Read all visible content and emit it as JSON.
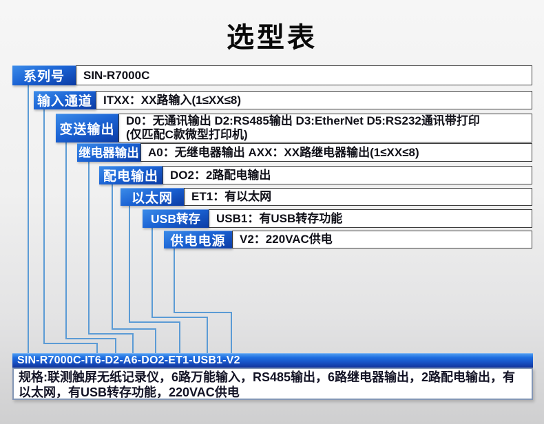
{
  "title": "选型表",
  "rows": [
    {
      "label": "系列号",
      "content": "SIN-R7000C"
    },
    {
      "label": "输入通道",
      "content": "ITXX：XX路输入(1≤XX≤8)"
    },
    {
      "label": "变送输出",
      "content": "D0：无通讯输出 D2:RS485输出 D3:EtherNet D5:RS232通讯带打印",
      "content2": "(仅匹配C款微型打印机)"
    },
    {
      "label": "继电器输出",
      "content": "A0：无继电器输出 AXX：XX路继电器输出(1≤XX≤8)"
    },
    {
      "label": "配电输出",
      "content": "DO2：2路配电输出"
    },
    {
      "label": "以太网",
      "content": "ET1：有以太网"
    },
    {
      "label": "USB转存",
      "content": "USB1：有USB转存功能"
    },
    {
      "label": "供电电源",
      "content": "V2：220VAC供电"
    }
  ],
  "model_code": "SIN-R7000C-IT6-D2-A6-DO2-ET1-USB1-V2",
  "spec": "规格:联测触屏无纸记录仪，6路万能输入，RS485输出，6路继电器输出，2路配电输出，有以太网，有USB转存功能，220VAC供电",
  "colors": {
    "label_blue_light": "#3c8ce9",
    "label_blue_dark": "#0b3ba4",
    "bar_blue": "#1d6ce0",
    "connector_blue": "#5b9bd5",
    "spec_text_dark": "#131325"
  }
}
